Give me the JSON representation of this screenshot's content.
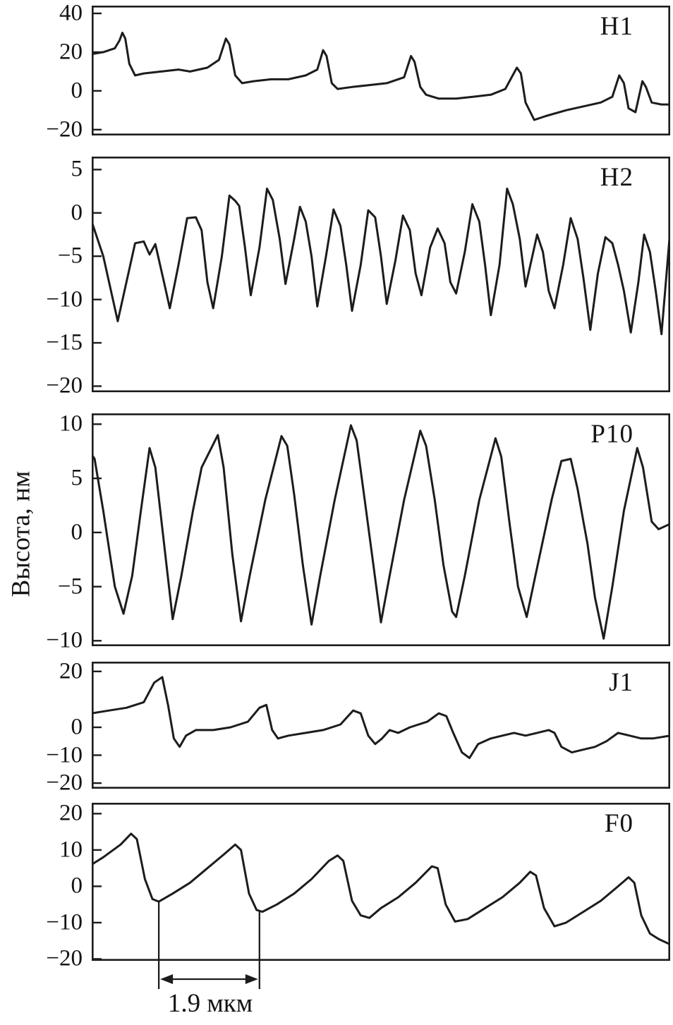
{
  "figure": {
    "y_axis_label": "Высота, нм",
    "scale_annotation": {
      "label": "1.9 мкм",
      "x1_frac": 0.116,
      "x2_frac": 0.29,
      "line_y_values": [
        -4.2,
        -7.0
      ]
    }
  },
  "chart_data": [
    {
      "type": "line",
      "name": "H1",
      "ylabel": "Высота, нм",
      "yticks": [
        40,
        20,
        0,
        -20
      ],
      "ylim": [
        -23,
        44
      ],
      "x_axis": "fraction of scan length",
      "points": [
        [
          0,
          19
        ],
        [
          0.02,
          20
        ],
        [
          0.04,
          22
        ],
        [
          0.048,
          26
        ],
        [
          0.053,
          30
        ],
        [
          0.058,
          27
        ],
        [
          0.065,
          14
        ],
        [
          0.075,
          8
        ],
        [
          0.09,
          9
        ],
        [
          0.12,
          10
        ],
        [
          0.15,
          11
        ],
        [
          0.17,
          10
        ],
        [
          0.2,
          12
        ],
        [
          0.22,
          16
        ],
        [
          0.232,
          27
        ],
        [
          0.238,
          24
        ],
        [
          0.248,
          8
        ],
        [
          0.26,
          4
        ],
        [
          0.28,
          5
        ],
        [
          0.31,
          6
        ],
        [
          0.34,
          6
        ],
        [
          0.37,
          8
        ],
        [
          0.39,
          11
        ],
        [
          0.4,
          21
        ],
        [
          0.406,
          18
        ],
        [
          0.415,
          4
        ],
        [
          0.425,
          1
        ],
        [
          0.45,
          2
        ],
        [
          0.48,
          3
        ],
        [
          0.51,
          4
        ],
        [
          0.54,
          7
        ],
        [
          0.552,
          18
        ],
        [
          0.558,
          15
        ],
        [
          0.568,
          2
        ],
        [
          0.578,
          -2
        ],
        [
          0.6,
          -4
        ],
        [
          0.63,
          -4
        ],
        [
          0.66,
          -3
        ],
        [
          0.69,
          -2
        ],
        [
          0.715,
          1
        ],
        [
          0.735,
          12
        ],
        [
          0.742,
          9
        ],
        [
          0.75,
          -6
        ],
        [
          0.765,
          -15
        ],
        [
          0.785,
          -13
        ],
        [
          0.82,
          -10
        ],
        [
          0.85,
          -8
        ],
        [
          0.88,
          -6
        ],
        [
          0.9,
          -3
        ],
        [
          0.912,
          8
        ],
        [
          0.92,
          4
        ],
        [
          0.928,
          -9
        ],
        [
          0.94,
          -11
        ],
        [
          0.952,
          5
        ],
        [
          0.958,
          2
        ],
        [
          0.968,
          -6
        ],
        [
          0.985,
          -7
        ],
        [
          1,
          -7
        ]
      ]
    },
    {
      "type": "line",
      "name": "H2",
      "ylabel": "Высота, нм",
      "yticks": [
        5,
        0,
        -5,
        -10,
        -15,
        -20
      ],
      "ylim": [
        -20.7,
        6.5
      ],
      "x_axis": "fraction of scan length",
      "points": [
        [
          0,
          -1
        ],
        [
          0.02,
          -5
        ],
        [
          0.045,
          -12.5
        ],
        [
          0.06,
          -8
        ],
        [
          0.075,
          -3.5
        ],
        [
          0.09,
          -3.3
        ],
        [
          0.1,
          -4.8
        ],
        [
          0.11,
          -3.6
        ],
        [
          0.125,
          -8
        ],
        [
          0.135,
          -11
        ],
        [
          0.15,
          -6
        ],
        [
          0.165,
          -0.6
        ],
        [
          0.18,
          -0.5
        ],
        [
          0.19,
          -2
        ],
        [
          0.2,
          -8
        ],
        [
          0.21,
          -11
        ],
        [
          0.225,
          -5
        ],
        [
          0.238,
          2
        ],
        [
          0.248,
          1.4
        ],
        [
          0.255,
          0.8
        ],
        [
          0.265,
          -4
        ],
        [
          0.275,
          -9.5
        ],
        [
          0.29,
          -4
        ],
        [
          0.303,
          2.8
        ],
        [
          0.313,
          1.5
        ],
        [
          0.325,
          -3
        ],
        [
          0.335,
          -8.2
        ],
        [
          0.35,
          -3
        ],
        [
          0.36,
          0.7
        ],
        [
          0.37,
          -1
        ],
        [
          0.38,
          -5
        ],
        [
          0.39,
          -10.8
        ],
        [
          0.405,
          -5
        ],
        [
          0.418,
          0.4
        ],
        [
          0.43,
          -1.5
        ],
        [
          0.44,
          -6
        ],
        [
          0.45,
          -11.3
        ],
        [
          0.465,
          -6
        ],
        [
          0.478,
          0.3
        ],
        [
          0.49,
          -0.5
        ],
        [
          0.5,
          -5
        ],
        [
          0.51,
          -10.5
        ],
        [
          0.525,
          -5.5
        ],
        [
          0.538,
          -0.3
        ],
        [
          0.55,
          -2
        ],
        [
          0.56,
          -7
        ],
        [
          0.57,
          -9.5
        ],
        [
          0.585,
          -4
        ],
        [
          0.598,
          -1.8
        ],
        [
          0.61,
          -3.5
        ],
        [
          0.62,
          -8
        ],
        [
          0.63,
          -9.3
        ],
        [
          0.645,
          -4.5
        ],
        [
          0.658,
          1
        ],
        [
          0.67,
          -1
        ],
        [
          0.68,
          -6
        ],
        [
          0.69,
          -11.8
        ],
        [
          0.705,
          -6
        ],
        [
          0.718,
          2.8
        ],
        [
          0.728,
          1
        ],
        [
          0.74,
          -3
        ],
        [
          0.75,
          -8.5
        ],
        [
          0.76,
          -5.5
        ],
        [
          0.77,
          -2.5
        ],
        [
          0.78,
          -4.5
        ],
        [
          0.79,
          -9
        ],
        [
          0.8,
          -11
        ],
        [
          0.815,
          -6
        ],
        [
          0.828,
          -0.6
        ],
        [
          0.84,
          -3
        ],
        [
          0.85,
          -7.5
        ],
        [
          0.862,
          -13.5
        ],
        [
          0.875,
          -7
        ],
        [
          0.888,
          -2.8
        ],
        [
          0.9,
          -3.5
        ],
        [
          0.91,
          -6
        ],
        [
          0.92,
          -9
        ],
        [
          0.932,
          -13.8
        ],
        [
          0.945,
          -8
        ],
        [
          0.955,
          -2.5
        ],
        [
          0.965,
          -4.5
        ],
        [
          0.975,
          -9
        ],
        [
          0.985,
          -14
        ],
        [
          1,
          -2
        ]
      ]
    },
    {
      "type": "line",
      "name": "P10",
      "ylabel": "Высота, нм",
      "yticks": [
        10,
        5,
        0,
        -5,
        -10
      ],
      "ylim": [
        -10.5,
        11
      ],
      "x_axis": "fraction of scan length",
      "points": [
        [
          0,
          7.2
        ],
        [
          0.005,
          6.8
        ],
        [
          0.02,
          2
        ],
        [
          0.04,
          -5
        ],
        [
          0.055,
          -7.5
        ],
        [
          0.07,
          -4
        ],
        [
          0.085,
          2
        ],
        [
          0.1,
          7.8
        ],
        [
          0.11,
          6
        ],
        [
          0.125,
          -1
        ],
        [
          0.14,
          -8
        ],
        [
          0.155,
          -4
        ],
        [
          0.175,
          2
        ],
        [
          0.19,
          6
        ],
        [
          0.218,
          9
        ],
        [
          0.228,
          6
        ],
        [
          0.243,
          -2
        ],
        [
          0.258,
          -8.2
        ],
        [
          0.273,
          -4
        ],
        [
          0.3,
          3
        ],
        [
          0.328,
          8.9
        ],
        [
          0.338,
          8
        ],
        [
          0.35,
          3.5
        ],
        [
          0.365,
          -3
        ],
        [
          0.38,
          -8.5
        ],
        [
          0.395,
          -4
        ],
        [
          0.42,
          3
        ],
        [
          0.448,
          9.9
        ],
        [
          0.458,
          8.5
        ],
        [
          0.472,
          3
        ],
        [
          0.487,
          -3
        ],
        [
          0.5,
          -8.3
        ],
        [
          0.515,
          -4
        ],
        [
          0.54,
          3
        ],
        [
          0.568,
          9.4
        ],
        [
          0.578,
          8
        ],
        [
          0.593,
          3
        ],
        [
          0.608,
          -3
        ],
        [
          0.623,
          -7.3
        ],
        [
          0.63,
          -7.8
        ],
        [
          0.645,
          -4
        ],
        [
          0.67,
          3
        ],
        [
          0.698,
          8.7
        ],
        [
          0.708,
          7
        ],
        [
          0.722,
          1
        ],
        [
          0.737,
          -5
        ],
        [
          0.752,
          -7.8
        ],
        [
          0.767,
          -4
        ],
        [
          0.795,
          3
        ],
        [
          0.812,
          6.6
        ],
        [
          0.828,
          6.8
        ],
        [
          0.84,
          4
        ],
        [
          0.85,
          1
        ],
        [
          0.857,
          -1
        ],
        [
          0.87,
          -6
        ],
        [
          0.885,
          -9.8
        ],
        [
          0.9,
          -5
        ],
        [
          0.92,
          2
        ],
        [
          0.943,
          7.8
        ],
        [
          0.953,
          6
        ],
        [
          0.968,
          1
        ],
        [
          0.98,
          0.3
        ],
        [
          1,
          0.8
        ]
      ]
    },
    {
      "type": "line",
      "name": "J1",
      "ylabel": "Высота, нм",
      "yticks": [
        20,
        0,
        -10,
        -20
      ],
      "ylim": [
        -22,
        23.5
      ],
      "x_axis": "fraction of scan length",
      "points": [
        [
          0,
          5
        ],
        [
          0.03,
          6
        ],
        [
          0.06,
          7
        ],
        [
          0.09,
          9
        ],
        [
          0.108,
          16
        ],
        [
          0.122,
          18
        ],
        [
          0.132,
          8
        ],
        [
          0.142,
          -4
        ],
        [
          0.152,
          -7
        ],
        [
          0.163,
          -3
        ],
        [
          0.18,
          -1
        ],
        [
          0.21,
          -1
        ],
        [
          0.24,
          0
        ],
        [
          0.27,
          2
        ],
        [
          0.29,
          7
        ],
        [
          0.302,
          8
        ],
        [
          0.312,
          -1
        ],
        [
          0.322,
          -4
        ],
        [
          0.34,
          -3
        ],
        [
          0.37,
          -2
        ],
        [
          0.4,
          -1
        ],
        [
          0.43,
          1
        ],
        [
          0.452,
          6
        ],
        [
          0.465,
          5
        ],
        [
          0.478,
          -3
        ],
        [
          0.49,
          -6
        ],
        [
          0.502,
          -4
        ],
        [
          0.515,
          -1
        ],
        [
          0.53,
          -2
        ],
        [
          0.55,
          0
        ],
        [
          0.58,
          2
        ],
        [
          0.6,
          5
        ],
        [
          0.613,
          4
        ],
        [
          0.625,
          -2
        ],
        [
          0.64,
          -9
        ],
        [
          0.653,
          -11
        ],
        [
          0.668,
          -6
        ],
        [
          0.69,
          -4
        ],
        [
          0.71,
          -3
        ],
        [
          0.73,
          -2
        ],
        [
          0.75,
          -3
        ],
        [
          0.77,
          -2
        ],
        [
          0.79,
          -1
        ],
        [
          0.8,
          -2
        ],
        [
          0.812,
          -7
        ],
        [
          0.83,
          -9
        ],
        [
          0.85,
          -8
        ],
        [
          0.87,
          -7
        ],
        [
          0.89,
          -5
        ],
        [
          0.91,
          -2
        ],
        [
          0.93,
          -3
        ],
        [
          0.95,
          -4
        ],
        [
          0.97,
          -4
        ],
        [
          1,
          -3
        ]
      ]
    },
    {
      "type": "line",
      "name": "F0",
      "ylabel": "Высота, нм",
      "yticks": [
        20,
        10,
        0,
        -10,
        -20
      ],
      "ylim": [
        -20.5,
        23
      ],
      "x_axis": "fraction of scan length; distance between first two troughs = 1.9 мкм",
      "points": [
        [
          0,
          6
        ],
        [
          0.02,
          8
        ],
        [
          0.05,
          11.5
        ],
        [
          0.068,
          14.5
        ],
        [
          0.078,
          13
        ],
        [
          0.092,
          2
        ],
        [
          0.105,
          -3.5
        ],
        [
          0.116,
          -4.2
        ],
        [
          0.14,
          -2
        ],
        [
          0.17,
          1
        ],
        [
          0.2,
          5
        ],
        [
          0.23,
          9
        ],
        [
          0.248,
          11.5
        ],
        [
          0.258,
          10
        ],
        [
          0.272,
          -2
        ],
        [
          0.285,
          -6.5
        ],
        [
          0.295,
          -7
        ],
        [
          0.32,
          -5
        ],
        [
          0.35,
          -2
        ],
        [
          0.38,
          2
        ],
        [
          0.41,
          7
        ],
        [
          0.425,
          8.5
        ],
        [
          0.435,
          7
        ],
        [
          0.45,
          -4
        ],
        [
          0.465,
          -8
        ],
        [
          0.48,
          -8.7
        ],
        [
          0.5,
          -6
        ],
        [
          0.53,
          -3
        ],
        [
          0.56,
          1
        ],
        [
          0.588,
          5.5
        ],
        [
          0.598,
          5
        ],
        [
          0.612,
          -5
        ],
        [
          0.628,
          -9.7
        ],
        [
          0.65,
          -9
        ],
        [
          0.68,
          -6
        ],
        [
          0.71,
          -3
        ],
        [
          0.74,
          1
        ],
        [
          0.758,
          4
        ],
        [
          0.768,
          3
        ],
        [
          0.782,
          -6
        ],
        [
          0.8,
          -11
        ],
        [
          0.82,
          -10
        ],
        [
          0.85,
          -7
        ],
        [
          0.88,
          -4
        ],
        [
          0.91,
          0
        ],
        [
          0.928,
          2.5
        ],
        [
          0.938,
          1
        ],
        [
          0.95,
          -8
        ],
        [
          0.965,
          -13
        ],
        [
          0.98,
          -14.5
        ],
        [
          1,
          -16
        ]
      ]
    }
  ]
}
